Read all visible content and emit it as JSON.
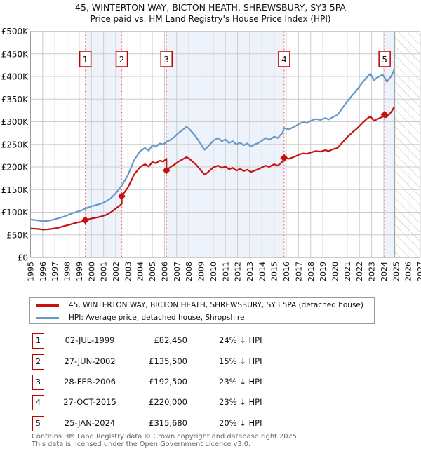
{
  "title": "45, WINTERTON WAY, BICTON HEATH, SHREWSBURY, SY3 5PA",
  "subtitle": "Price paid vs. HM Land Registry's House Price Index (HPI)",
  "chart_data": {
    "type": "line",
    "title": "Price paid vs. HPI",
    "unit": "GBP thousands",
    "x_axis": {
      "min": 1995,
      "max": 2027,
      "tick_years": [
        1995,
        1996,
        1997,
        1998,
        1999,
        2000,
        2001,
        2002,
        2003,
        2004,
        2005,
        2006,
        2007,
        2008,
        2009,
        2010,
        2011,
        2012,
        2013,
        2014,
        2015,
        2016,
        2017,
        2018,
        2019,
        2020,
        2021,
        2022,
        2023,
        2024,
        2025,
        2026,
        2027
      ]
    },
    "y_axis": {
      "min": 0,
      "max": 500,
      "tick_step": 50,
      "tick_labels": [
        "£0",
        "£50K",
        "£100K",
        "£150K",
        "£200K",
        "£250K",
        "£300K",
        "£350K",
        "£400K",
        "£450K",
        "£500K"
      ]
    },
    "grid": true,
    "legend_position": "bottom",
    "data_end_year": 2024.87,
    "hatch_range": [
      2024.87,
      2027
    ],
    "shaded_ranges": [
      [
        1999.5,
        2002.49
      ],
      [
        2006.16,
        2015.82
      ],
      [
        2024.07,
        2024.87
      ]
    ],
    "colors": {
      "property": "#c41111",
      "hpi": "#6597c7",
      "sale_line": "#f26b6b",
      "grid": "#cccccc",
      "band": "#edf2fb",
      "hatch": "#bbbbbb",
      "marker": "#c41111",
      "label_box_border": "#c00000"
    },
    "sales": [
      {
        "n": 1,
        "year": 1999.5,
        "price": 82.45,
        "date": "02-JUL-1999"
      },
      {
        "n": 2,
        "year": 2002.49,
        "price": 135.5,
        "date": "27-JUN-2002"
      },
      {
        "n": 3,
        "year": 2006.16,
        "price": 192.5,
        "date": "28-FEB-2006"
      },
      {
        "n": 4,
        "year": 2015.82,
        "price": 220.0,
        "date": "27-OCT-2015"
      },
      {
        "n": 5,
        "year": 2024.07,
        "price": 315.68,
        "date": "25-JAN-2024"
      }
    ],
    "series": [
      {
        "name": "45, WINTERTON WAY, BICTON HEATH, SHREWSBURY, SY3 5PA (detached house)",
        "key": "property",
        "color": "#c41111",
        "points": [
          [
            1995.0,
            64
          ],
          [
            1995.6,
            63
          ],
          [
            1996.0,
            61.5
          ],
          [
            1996.4,
            62
          ],
          [
            1996.8,
            63.5
          ],
          [
            1997.2,
            65
          ],
          [
            1997.6,
            68
          ],
          [
            1998.0,
            71
          ],
          [
            1998.4,
            74
          ],
          [
            1998.8,
            77
          ],
          [
            1999.2,
            79
          ],
          [
            1999.5,
            82.45
          ],
          [
            2000.0,
            86
          ],
          [
            2000.4,
            88
          ],
          [
            2000.8,
            90.5
          ],
          [
            2001.2,
            94
          ],
          [
            2001.6,
            100
          ],
          [
            2002.0,
            108
          ],
          [
            2002.49,
            118
          ],
          [
            2002.49,
            135.5
          ],
          [
            2003.0,
            155
          ],
          [
            2003.5,
            183
          ],
          [
            2004.0,
            200
          ],
          [
            2004.4,
            206
          ],
          [
            2004.7,
            201
          ],
          [
            2005.0,
            211
          ],
          [
            2005.3,
            208
          ],
          [
            2005.6,
            214
          ],
          [
            2005.9,
            212
          ],
          [
            2006.16,
            218
          ],
          [
            2006.16,
            192.5
          ],
          [
            2006.5,
            200
          ],
          [
            2006.8,
            205
          ],
          [
            2007.1,
            211
          ],
          [
            2007.5,
            217
          ],
          [
            2007.8,
            222
          ],
          [
            2008.0,
            219
          ],
          [
            2008.3,
            212
          ],
          [
            2008.6,
            205
          ],
          [
            2009.0,
            192
          ],
          [
            2009.3,
            183
          ],
          [
            2009.6,
            189
          ],
          [
            2010.0,
            199
          ],
          [
            2010.4,
            203
          ],
          [
            2010.7,
            198
          ],
          [
            2011.0,
            201
          ],
          [
            2011.3,
            195
          ],
          [
            2011.6,
            198
          ],
          [
            2011.9,
            192
          ],
          [
            2012.2,
            196
          ],
          [
            2012.5,
            191
          ],
          [
            2012.8,
            194
          ],
          [
            2013.1,
            189
          ],
          [
            2013.4,
            192
          ],
          [
            2013.7,
            195
          ],
          [
            2014.0,
            199
          ],
          [
            2014.3,
            203
          ],
          [
            2014.6,
            200
          ],
          [
            2015.0,
            206
          ],
          [
            2015.3,
            203
          ],
          [
            2015.7,
            212
          ],
          [
            2015.82,
            220
          ],
          [
            2016.2,
            218
          ],
          [
            2016.5,
            221
          ],
          [
            2016.8,
            224
          ],
          [
            2017.1,
            228
          ],
          [
            2017.4,
            230
          ],
          [
            2017.7,
            229
          ],
          [
            2018.0,
            232
          ],
          [
            2018.4,
            235
          ],
          [
            2018.8,
            234
          ],
          [
            2019.2,
            237
          ],
          [
            2019.5,
            235
          ],
          [
            2019.8,
            239
          ],
          [
            2020.2,
            242
          ],
          [
            2020.6,
            254
          ],
          [
            2021.0,
            266
          ],
          [
            2021.4,
            276
          ],
          [
            2021.8,
            285
          ],
          [
            2022.2,
            296
          ],
          [
            2022.6,
            306
          ],
          [
            2022.9,
            312
          ],
          [
            2023.2,
            302
          ],
          [
            2023.5,
            306
          ],
          [
            2023.9,
            311
          ],
          [
            2024.07,
            315.68
          ],
          [
            2024.2,
            310
          ],
          [
            2024.35,
            314
          ],
          [
            2024.5,
            318
          ],
          [
            2024.65,
            323
          ],
          [
            2024.87,
            333
          ]
        ]
      },
      {
        "name": "HPI: Average price, detached house, Shropshire",
        "key": "hpi",
        "color": "#6597c7",
        "points": [
          [
            1995.0,
            84
          ],
          [
            1995.3,
            83
          ],
          [
            1995.6,
            82
          ],
          [
            1996.0,
            80
          ],
          [
            1996.4,
            81
          ],
          [
            1996.8,
            83
          ],
          [
            1997.2,
            86
          ],
          [
            1997.6,
            89
          ],
          [
            1998.0,
            93
          ],
          [
            1998.4,
            97
          ],
          [
            1998.8,
            101
          ],
          [
            1999.2,
            104
          ],
          [
            1999.5,
            108
          ],
          [
            2000.0,
            113
          ],
          [
            2000.4,
            116
          ],
          [
            2000.8,
            119
          ],
          [
            2001.2,
            124
          ],
          [
            2001.6,
            131
          ],
          [
            2002.0,
            142
          ],
          [
            2002.5,
            159
          ],
          [
            2003.0,
            182
          ],
          [
            2003.5,
            215
          ],
          [
            2004.0,
            235
          ],
          [
            2004.4,
            242
          ],
          [
            2004.7,
            236
          ],
          [
            2005.0,
            248
          ],
          [
            2005.3,
            245
          ],
          [
            2005.6,
            252
          ],
          [
            2005.9,
            250
          ],
          [
            2006.2,
            256
          ],
          [
            2006.5,
            260
          ],
          [
            2006.8,
            266
          ],
          [
            2007.1,
            274
          ],
          [
            2007.5,
            282
          ],
          [
            2007.8,
            289
          ],
          [
            2008.0,
            285
          ],
          [
            2008.3,
            276
          ],
          [
            2008.6,
            266
          ],
          [
            2009.0,
            250
          ],
          [
            2009.3,
            238
          ],
          [
            2009.6,
            246
          ],
          [
            2010.0,
            258
          ],
          [
            2010.4,
            264
          ],
          [
            2010.7,
            257
          ],
          [
            2011.0,
            261
          ],
          [
            2011.3,
            253
          ],
          [
            2011.6,
            257
          ],
          [
            2011.9,
            250
          ],
          [
            2012.2,
            254
          ],
          [
            2012.5,
            248
          ],
          [
            2012.8,
            252
          ],
          [
            2013.1,
            245
          ],
          [
            2013.4,
            250
          ],
          [
            2013.7,
            253
          ],
          [
            2014.0,
            258
          ],
          [
            2014.3,
            264
          ],
          [
            2014.6,
            260
          ],
          [
            2015.0,
            267
          ],
          [
            2015.3,
            264
          ],
          [
            2015.7,
            276
          ],
          [
            2015.82,
            286
          ],
          [
            2016.2,
            283
          ],
          [
            2016.5,
            287
          ],
          [
            2016.8,
            291
          ],
          [
            2017.1,
            296
          ],
          [
            2017.4,
            299
          ],
          [
            2017.7,
            297
          ],
          [
            2018.0,
            302
          ],
          [
            2018.4,
            306
          ],
          [
            2018.8,
            304
          ],
          [
            2019.2,
            308
          ],
          [
            2019.5,
            305
          ],
          [
            2019.8,
            310
          ],
          [
            2020.2,
            315
          ],
          [
            2020.6,
            330
          ],
          [
            2021.0,
            345
          ],
          [
            2021.4,
            358
          ],
          [
            2021.8,
            370
          ],
          [
            2022.2,
            385
          ],
          [
            2022.6,
            398
          ],
          [
            2022.9,
            406
          ],
          [
            2023.2,
            392
          ],
          [
            2023.5,
            398
          ],
          [
            2023.9,
            404
          ],
          [
            2024.1,
            396
          ],
          [
            2024.25,
            388
          ],
          [
            2024.45,
            395
          ],
          [
            2024.6,
            400
          ],
          [
            2024.75,
            408
          ],
          [
            2024.87,
            416
          ]
        ]
      }
    ]
  },
  "legend": [
    {
      "label": "45, WINTERTON WAY, BICTON HEATH, SHREWSBURY, SY3 5PA (detached house)",
      "color": "#c41111"
    },
    {
      "label": "HPI: Average price, detached house, Shropshire",
      "color": "#6597c7"
    }
  ],
  "transactions": [
    {
      "n": "1",
      "date": "02-JUL-1999",
      "price": "£82,450",
      "vs_hpi": "24% ↓ HPI"
    },
    {
      "n": "2",
      "date": "27-JUN-2002",
      "price": "£135,500",
      "vs_hpi": "15% ↓ HPI"
    },
    {
      "n": "3",
      "date": "28-FEB-2006",
      "price": "£192,500",
      "vs_hpi": "23% ↓ HPI"
    },
    {
      "n": "4",
      "date": "27-OCT-2015",
      "price": "£220,000",
      "vs_hpi": "23% ↓ HPI"
    },
    {
      "n": "5",
      "date": "25-JAN-2024",
      "price": "£315,680",
      "vs_hpi": "20% ↓ HPI"
    }
  ],
  "footer": {
    "line1": "Contains HM Land Registry data © Crown copyright and database right 2025.",
    "line2": "This data is licensed under the Open Government Licence v3.0."
  }
}
